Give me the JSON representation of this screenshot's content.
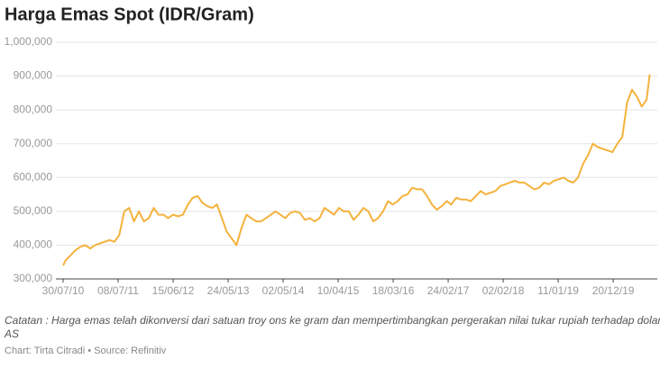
{
  "chart_data": {
    "type": "line",
    "title": "Harga Emas Spot (IDR/Gram)",
    "note": "Catatan : Harga emas telah dikonversi dari satuan troy ons ke gram dan mempertimbangkan pergerakan nilai tukar rupiah terhadap dolar AS",
    "source": "Chart: Tirta Citradi • Source: Refinitiv",
    "color": "#f4b23c",
    "grid": true,
    "xlim": [
      "2010-07-30",
      "2020-09-20"
    ],
    "xticks": [
      {
        "value": "2010-07-30",
        "label": "30/07/10"
      },
      {
        "value": "2011-07-08",
        "label": "08/07/11"
      },
      {
        "value": "2012-06-15",
        "label": "15/06/12"
      },
      {
        "value": "2013-05-24",
        "label": "24/05/13"
      },
      {
        "value": "2014-05-02",
        "label": "02/05/14"
      },
      {
        "value": "2015-04-10",
        "label": "10/04/15"
      },
      {
        "value": "2016-03-18",
        "label": "18/03/16"
      },
      {
        "value": "2017-02-24",
        "label": "24/02/17"
      },
      {
        "value": "2018-02-02",
        "label": "02/02/18"
      },
      {
        "value": "2019-01-11",
        "label": "11/01/19"
      },
      {
        "value": "2019-12-20",
        "label": "20/12/19"
      }
    ],
    "ylim": [
      300000,
      1000000
    ],
    "yticks": [
      {
        "value": 300000,
        "label": "300,000"
      },
      {
        "value": 400000,
        "label": "400,000"
      },
      {
        "value": 500000,
        "label": "500,000"
      },
      {
        "value": 600000,
        "label": "600,000"
      },
      {
        "value": 700000,
        "label": "700,000"
      },
      {
        "value": 800000,
        "label": "800,000"
      },
      {
        "value": 900000,
        "label": "900,000"
      },
      {
        "value": 1000000,
        "label": "1,000,000"
      }
    ],
    "x": [
      "2010-07-30",
      "2010-08-15",
      "2010-09-15",
      "2010-10-15",
      "2010-11-15",
      "2010-12-15",
      "2011-01-15",
      "2011-02-15",
      "2011-03-15",
      "2011-04-15",
      "2011-05-15",
      "2011-06-15",
      "2011-07-15",
      "2011-08-15",
      "2011-09-15",
      "2011-10-15",
      "2011-11-15",
      "2011-12-15",
      "2012-01-15",
      "2012-02-15",
      "2012-03-15",
      "2012-04-15",
      "2012-05-15",
      "2012-06-15",
      "2012-07-15",
      "2012-08-15",
      "2012-09-15",
      "2012-10-15",
      "2012-11-15",
      "2012-12-15",
      "2013-01-15",
      "2013-02-15",
      "2013-03-15",
      "2013-04-15",
      "2013-05-15",
      "2013-06-15",
      "2013-07-15",
      "2013-08-15",
      "2013-09-15",
      "2013-10-15",
      "2013-11-15",
      "2013-12-15",
      "2014-01-15",
      "2014-02-15",
      "2014-03-15",
      "2014-04-15",
      "2014-05-15",
      "2014-06-15",
      "2014-07-15",
      "2014-08-15",
      "2014-09-15",
      "2014-10-15",
      "2014-11-15",
      "2014-12-15",
      "2015-01-15",
      "2015-02-15",
      "2015-03-15",
      "2015-04-15",
      "2015-05-15",
      "2015-06-15",
      "2015-07-15",
      "2015-08-15",
      "2015-09-15",
      "2015-10-15",
      "2015-11-15",
      "2015-12-15",
      "2016-01-15",
      "2016-02-15",
      "2016-03-15",
      "2016-04-15",
      "2016-05-15",
      "2016-06-15",
      "2016-07-15",
      "2016-08-15",
      "2016-09-15",
      "2016-10-15",
      "2016-11-15",
      "2016-12-15",
      "2017-01-15",
      "2017-02-15",
      "2017-03-15",
      "2017-04-15",
      "2017-05-15",
      "2017-06-15",
      "2017-07-15",
      "2017-08-15",
      "2017-09-15",
      "2017-10-15",
      "2017-11-15",
      "2017-12-15",
      "2018-01-15",
      "2018-02-15",
      "2018-03-15",
      "2018-04-15",
      "2018-05-15",
      "2018-06-15",
      "2018-07-15",
      "2018-08-15",
      "2018-09-15",
      "2018-10-15",
      "2018-11-15",
      "2018-12-15",
      "2019-01-15",
      "2019-02-15",
      "2019-03-15",
      "2019-04-15",
      "2019-05-15",
      "2019-06-15",
      "2019-07-15",
      "2019-08-15",
      "2019-09-15",
      "2019-10-15",
      "2019-11-15",
      "2019-12-15",
      "2020-01-15",
      "2020-02-15",
      "2020-03-15",
      "2020-04-15",
      "2020-05-15",
      "2020-06-15",
      "2020-07-15",
      "2020-08-04"
    ],
    "values": [
      340000,
      355000,
      370000,
      385000,
      395000,
      400000,
      390000,
      400000,
      405000,
      410000,
      415000,
      410000,
      430000,
      500000,
      510000,
      470000,
      500000,
      470000,
      480000,
      510000,
      490000,
      490000,
      480000,
      490000,
      485000,
      490000,
      520000,
      540000,
      545000,
      525000,
      515000,
      510000,
      520000,
      480000,
      440000,
      420000,
      400000,
      450000,
      490000,
      480000,
      470000,
      470000,
      480000,
      490000,
      500000,
      490000,
      480000,
      495000,
      500000,
      495000,
      475000,
      480000,
      470000,
      480000,
      510000,
      500000,
      490000,
      510000,
      500000,
      500000,
      475000,
      490000,
      510000,
      500000,
      470000,
      480000,
      500000,
      530000,
      520000,
      530000,
      545000,
      550000,
      570000,
      565000,
      565000,
      545000,
      520000,
      505000,
      515000,
      530000,
      520000,
      540000,
      535000,
      535000,
      530000,
      545000,
      560000,
      550000,
      555000,
      560000,
      575000,
      580000,
      585000,
      590000,
      585000,
      585000,
      575000,
      565000,
      570000,
      585000,
      580000,
      590000,
      595000,
      600000,
      590000,
      585000,
      600000,
      640000,
      665000,
      700000,
      690000,
      685000,
      680000,
      675000,
      700000,
      720000,
      820000,
      860000,
      840000,
      810000,
      830000,
      905000
    ]
  }
}
